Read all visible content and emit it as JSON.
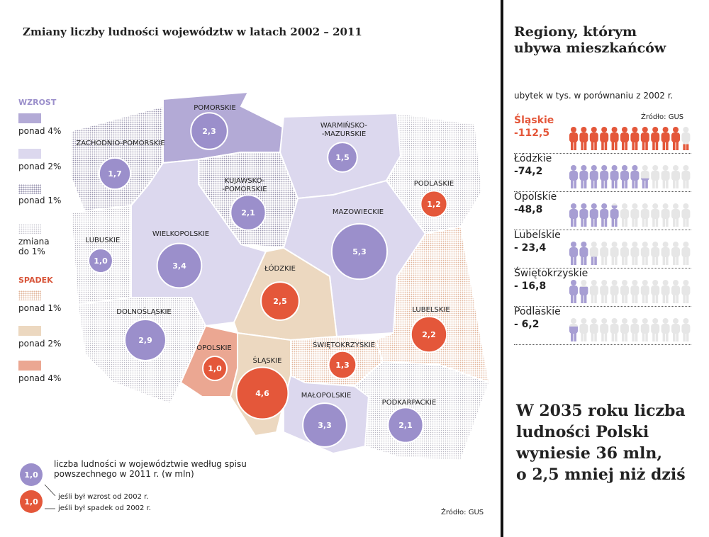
{
  "title": "Zmiany liczby ludności województw w latach 2002 – 2011",
  "legend": {
    "increase_heading": "WZROST",
    "decrease_heading": "SPADEK",
    "items": [
      {
        "id": "inc4",
        "label": "ponad 4%",
        "color": "#b3aad6"
      },
      {
        "id": "inc2",
        "label": "ponad 2%",
        "color": "#dcd8ee"
      },
      {
        "id": "inc1",
        "label": "ponad 1%",
        "color": "#9a96b0"
      },
      {
        "id": "zero",
        "label": "zmiana do 1%",
        "color": "#c4c2cc"
      },
      {
        "id": "dec1",
        "label": "ponad 1%",
        "color": "#e2b49a"
      },
      {
        "id": "dec2",
        "label": "ponad 2%",
        "color": "#ecd8c0"
      },
      {
        "id": "dec4",
        "label": "ponad 4%",
        "color": "#eba792"
      }
    ],
    "bubble_note": "liczba ludności w województwie według spisu powszechnego w 2011 r. (w mln)",
    "bubble_sample": "1,0",
    "growth_note": "jeśli był wzrost od 2002 r.",
    "decline_note": "jeśli był spadek od 2002 r.",
    "growth_color": "#9b8fcb",
    "decline_color": "#e4573a"
  },
  "regions": [
    {
      "id": "zp",
      "name": "ZACHODNIO-POMORSKIE",
      "population": "1,7",
      "trend": "growth",
      "fill": "inc1"
    },
    {
      "id": "pm",
      "name": "POMORSKIE",
      "population": "2,3",
      "trend": "growth",
      "fill": "inc4"
    },
    {
      "id": "wm",
      "name": "WARMIŃSKO--MAZURSKIE",
      "population": "1,5",
      "trend": "growth",
      "fill": "inc2"
    },
    {
      "id": "pd",
      "name": "PODLASKIE",
      "population": "1,2",
      "trend": "decline",
      "fill": "zero"
    },
    {
      "id": "kp",
      "name": "KUJAWSKO--POMORSKIE",
      "population": "2,1",
      "trend": "growth",
      "fill": "inc1"
    },
    {
      "id": "lb",
      "name": "LUBUSKIE",
      "population": "1,0",
      "trend": "growth",
      "fill": "zero"
    },
    {
      "id": "wp",
      "name": "WIELKOPOLSKIE",
      "population": "3,4",
      "trend": "growth",
      "fill": "inc2"
    },
    {
      "id": "mz",
      "name": "MAZOWIECKIE",
      "population": "5,3",
      "trend": "growth",
      "fill": "inc2"
    },
    {
      "id": "ld",
      "name": "ŁÓDZKIE",
      "population": "2,5",
      "trend": "decline",
      "fill": "dec2"
    },
    {
      "id": "ds",
      "name": "DOLNOŚLĄSKIE",
      "population": "2,9",
      "trend": "growth",
      "fill": "zero"
    },
    {
      "id": "op",
      "name": "OPOLSKIE",
      "population": "1,0",
      "trend": "decline",
      "fill": "dec4"
    },
    {
      "id": "sl",
      "name": "ŚLĄSKIE",
      "population": "4,6",
      "trend": "decline",
      "fill": "dec2"
    },
    {
      "id": "sk",
      "name": "ŚWIĘTOKRZYSKIE",
      "population": "1,3",
      "trend": "decline",
      "fill": "dec1"
    },
    {
      "id": "lu",
      "name": "LUBELSKIE",
      "population": "2,2",
      "trend": "decline",
      "fill": "dec1"
    },
    {
      "id": "mp",
      "name": "MAŁOPOLSKIE",
      "population": "3,3",
      "trend": "growth",
      "fill": "inc2"
    },
    {
      "id": "pk",
      "name": "PODKARPACKIE",
      "population": "2,1",
      "trend": "growth",
      "fill": "zero"
    }
  ],
  "map_source": "Źródło: GUS",
  "side": {
    "title_line1": "Regiony, którym",
    "title_line2": "ubywa mieszkańców",
    "subtitle": "ubytek w tys. w porównaniu z 2002 r.",
    "source": "Źródło: GUS",
    "rows": [
      {
        "name": "Śląskie",
        "value_label": "-112,5",
        "value": 112.5,
        "highlight": true
      },
      {
        "name": "Łódzkie",
        "value_label": "-74,2",
        "value": 74.2
      },
      {
        "name": "Opolskie",
        "value_label": "-48,8",
        "value": 48.8
      },
      {
        "name": "Lubelskie",
        "value_label": "- 23,4",
        "value": 23.4
      },
      {
        "name": "Świętokrzyskie",
        "value_label": "- 16,8",
        "value": 16.8
      },
      {
        "name": "Podlaskie",
        "value_label": "- 6,2",
        "value": 6.2
      }
    ],
    "figure_unit_thousands": 10,
    "figure_count": 12,
    "headline": [
      "W 2035 roku liczba",
      "ludności Polski",
      "wyniesie 36 mln,",
      "o 2,5 mniej niż dziś"
    ]
  }
}
